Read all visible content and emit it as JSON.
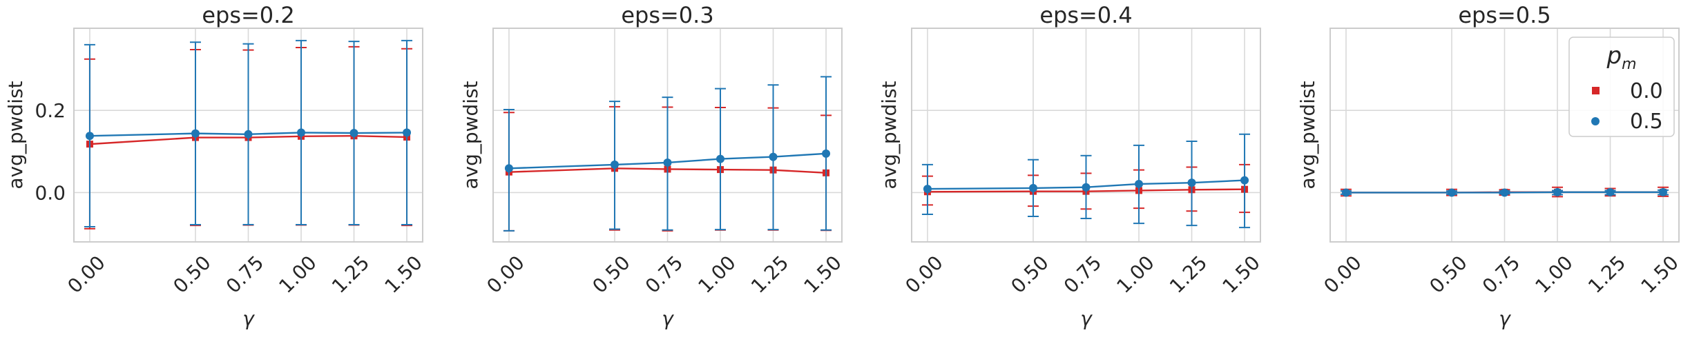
{
  "colors": {
    "series_0": "#d62728",
    "series_1": "#1f77b4",
    "grid": "#d9d9d9",
    "frame": "#cccccc",
    "background": "#ffffff"
  },
  "legend": {
    "title": "p",
    "title_subscript": "m",
    "placement": "top-right of last panel",
    "entries": [
      {
        "label": "0.0",
        "marker": "square",
        "color": "#d62728"
      },
      {
        "label": "0.5",
        "marker": "circle",
        "color": "#1f77b4"
      }
    ]
  },
  "chart_data": [
    {
      "type": "line",
      "title": "eps=0.2",
      "xlabel": "γ",
      "ylabel": "avg_pwdist",
      "x": [
        0.0,
        0.5,
        0.75,
        1.0,
        1.25,
        1.5
      ],
      "x_tick_labels": [
        "0.00",
        "0.50",
        "0.75",
        "1.00",
        "1.25",
        "1.50"
      ],
      "xlim": [
        -0.075,
        1.575
      ],
      "ylim": [
        -0.12,
        0.4
      ],
      "y_ticks": [
        0.0,
        0.2
      ],
      "y_tick_labels": [
        "0.0",
        "0.2"
      ],
      "grid": true,
      "series": [
        {
          "name": "0.0",
          "values": [
            0.118,
            0.134,
            0.134,
            0.137,
            0.138,
            0.135
          ],
          "err_low": [
            -0.088,
            -0.08,
            -0.079,
            -0.079,
            -0.079,
            -0.08
          ],
          "err_high": [
            0.325,
            0.348,
            0.347,
            0.353,
            0.355,
            0.35
          ]
        },
        {
          "name": "0.5",
          "values": [
            0.138,
            0.144,
            0.142,
            0.146,
            0.145,
            0.146
          ],
          "err_low": [
            -0.083,
            -0.078,
            -0.078,
            -0.078,
            -0.078,
            -0.078
          ],
          "err_high": [
            0.36,
            0.366,
            0.362,
            0.37,
            0.368,
            0.37
          ]
        }
      ]
    },
    {
      "type": "line",
      "title": "eps=0.3",
      "xlabel": "γ",
      "ylabel": "avg_pwdist",
      "x": [
        0.0,
        0.5,
        0.75,
        1.0,
        1.25,
        1.5
      ],
      "x_tick_labels": [
        "0.00",
        "0.50",
        "0.75",
        "1.00",
        "1.25",
        "1.50"
      ],
      "xlim": [
        -0.075,
        1.575
      ],
      "ylim": [
        -0.12,
        0.4
      ],
      "y_ticks": [
        0.0,
        0.2
      ],
      "y_tick_labels": [],
      "grid": true,
      "series": [
        {
          "name": "0.0",
          "values": [
            0.05,
            0.059,
            0.057,
            0.056,
            0.055,
            0.048
          ],
          "err_low": [
            -0.093,
            -0.091,
            -0.093,
            -0.091,
            -0.091,
            -0.092
          ],
          "err_high": [
            0.195,
            0.209,
            0.208,
            0.207,
            0.206,
            0.188
          ]
        },
        {
          "name": "0.5",
          "values": [
            0.059,
            0.068,
            0.073,
            0.082,
            0.087,
            0.095
          ],
          "err_low": [
            -0.093,
            -0.089,
            -0.091,
            -0.09,
            -0.09,
            -0.091
          ],
          "err_high": [
            0.202,
            0.222,
            0.232,
            0.253,
            0.262,
            0.282
          ]
        }
      ]
    },
    {
      "type": "line",
      "title": "eps=0.4",
      "xlabel": "γ",
      "ylabel": "avg_pwdist",
      "x": [
        0.0,
        0.5,
        0.75,
        1.0,
        1.25,
        1.5
      ],
      "x_tick_labels": [
        "0.00",
        "0.50",
        "0.75",
        "1.00",
        "1.25",
        "1.50"
      ],
      "xlim": [
        -0.075,
        1.575
      ],
      "ylim": [
        -0.12,
        0.4
      ],
      "y_ticks": [
        0.0,
        0.2
      ],
      "y_tick_labels": [],
      "grid": true,
      "series": [
        {
          "name": "0.0",
          "values": [
            0.002,
            0.003,
            0.003,
            0.005,
            0.007,
            0.008
          ],
          "err_low": [
            -0.03,
            -0.033,
            -0.04,
            -0.038,
            -0.045,
            -0.048
          ],
          "err_high": [
            0.04,
            0.042,
            0.047,
            0.055,
            0.062,
            0.068
          ]
        },
        {
          "name": "0.5",
          "values": [
            0.009,
            0.011,
            0.013,
            0.021,
            0.024,
            0.03
          ],
          "err_low": [
            -0.053,
            -0.058,
            -0.063,
            -0.075,
            -0.08,
            -0.085
          ],
          "err_high": [
            0.068,
            0.08,
            0.09,
            0.115,
            0.125,
            0.142
          ]
        }
      ]
    },
    {
      "type": "line",
      "title": "eps=0.5",
      "xlabel": "γ",
      "ylabel": "avg_pwdist",
      "x": [
        0.0,
        0.5,
        0.75,
        1.0,
        1.25,
        1.5
      ],
      "x_tick_labels": [
        "0.00",
        "0.50",
        "0.75",
        "1.00",
        "1.25",
        "1.50"
      ],
      "xlim": [
        -0.075,
        1.575
      ],
      "ylim": [
        -0.12,
        0.4
      ],
      "y_ticks": [
        0.0,
        0.2
      ],
      "y_tick_labels": [],
      "grid": true,
      "series": [
        {
          "name": "0.0",
          "values": [
            0.0,
            0.0,
            0.001,
            0.001,
            0.001,
            0.001
          ],
          "err_low": [
            -0.008,
            -0.007,
            -0.006,
            -0.01,
            -0.008,
            -0.009
          ],
          "err_high": [
            0.008,
            0.008,
            0.007,
            0.013,
            0.01,
            0.013
          ]
        },
        {
          "name": "0.5",
          "values": [
            0.0,
            0.0,
            0.0,
            0.001,
            0.001,
            0.001
          ],
          "err_low": [
            -0.004,
            -0.004,
            -0.003,
            -0.005,
            -0.005,
            -0.005
          ],
          "err_high": [
            0.004,
            0.004,
            0.004,
            0.005,
            0.005,
            0.006
          ]
        }
      ]
    }
  ]
}
